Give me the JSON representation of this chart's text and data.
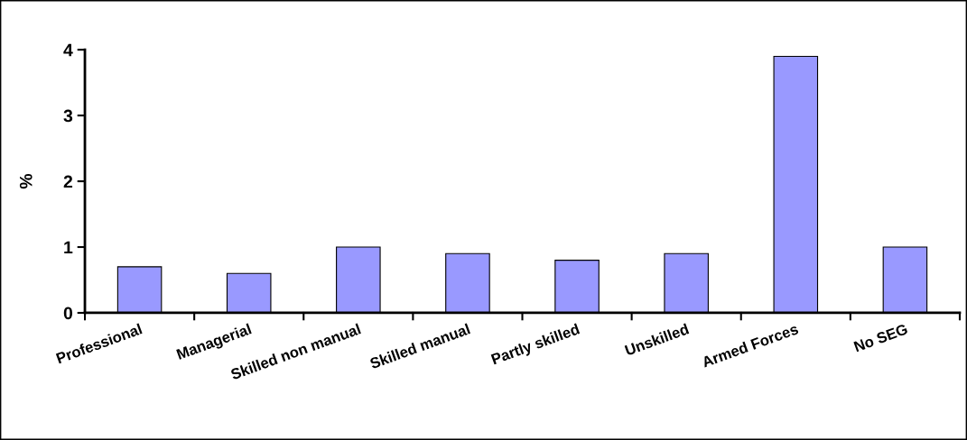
{
  "chart_data": {
    "type": "bar",
    "categories": [
      "Professional",
      "Managerial",
      "Skilled non manual",
      "Skilled manual",
      "Partly skilled",
      "Unskilled",
      "Armed Forces",
      "No SEG"
    ],
    "values": [
      0.7,
      0.6,
      1.0,
      0.9,
      0.8,
      0.9,
      3.9,
      1.0
    ],
    "color": "#9999ff",
    "ylabel": "%",
    "ylim": [
      0,
      4
    ],
    "yticks": [
      0,
      1,
      2,
      3,
      4
    ],
    "grid": false
  }
}
